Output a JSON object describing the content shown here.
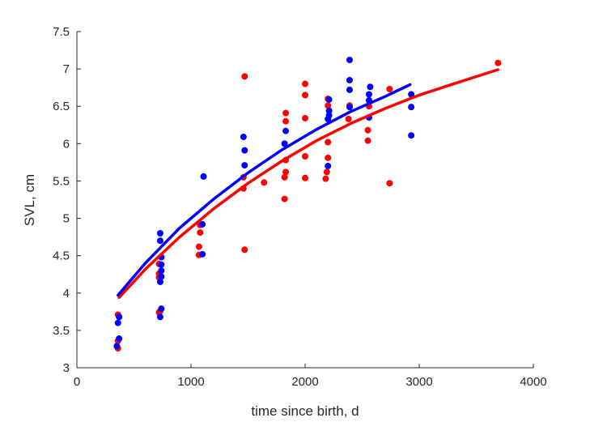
{
  "chart_data": {
    "type": "scatter",
    "xlabel": "time since birth, d",
    "ylabel": "SVL, cm",
    "xlim": [
      0,
      4000
    ],
    "ylim": [
      3,
      7.5
    ],
    "xticks": [
      0,
      1000,
      2000,
      3000,
      4000
    ],
    "xtick_labels": [
      "0",
      "1000",
      "2000",
      "3000",
      "4000"
    ],
    "yticks": [
      3,
      3.5,
      4,
      4.5,
      5,
      5.5,
      6,
      6.5,
      7,
      7.5
    ],
    "ytick_labels": [
      "3",
      "3.5",
      "4",
      "4.5",
      "5",
      "5.5",
      "6",
      "6.5",
      "7",
      "7.5"
    ],
    "grid": false,
    "legend": "none",
    "series": [
      {
        "color": "#ff0000",
        "points": [
          [
            360,
            3.26
          ],
          [
            360,
            3.36
          ],
          [
            360,
            3.71
          ],
          [
            720,
            3.74
          ],
          [
            720,
            4.21
          ],
          [
            720,
            4.26
          ],
          [
            720,
            4.39
          ],
          [
            730,
            3.76
          ],
          [
            1070,
            4.51
          ],
          [
            1070,
            4.62
          ],
          [
            1080,
            4.81
          ],
          [
            1080,
            4.91
          ],
          [
            1460,
            5.4
          ],
          [
            1460,
            5.55
          ],
          [
            1470,
            4.58
          ],
          [
            1470,
            6.9
          ],
          [
            1640,
            5.48
          ],
          [
            1820,
            5.26
          ],
          [
            1820,
            5.55
          ],
          [
            1830,
            5.62
          ],
          [
            1830,
            5.78
          ],
          [
            1830,
            6.3
          ],
          [
            1830,
            6.41
          ],
          [
            2000,
            5.54
          ],
          [
            2000,
            5.83
          ],
          [
            2000,
            6.34
          ],
          [
            2000,
            6.65
          ],
          [
            2000,
            6.8
          ],
          [
            2180,
            5.53
          ],
          [
            2190,
            5.62
          ],
          [
            2200,
            5.81
          ],
          [
            2200,
            6.02
          ],
          [
            2200,
            6.51
          ],
          [
            2200,
            6.6
          ],
          [
            2380,
            6.33
          ],
          [
            2390,
            6.51
          ],
          [
            2550,
            6.04
          ],
          [
            2550,
            6.18
          ],
          [
            2560,
            6.5
          ],
          [
            2740,
            5.47
          ],
          [
            2740,
            6.73
          ],
          [
            3690,
            7.08
          ]
        ],
        "fit": [
          [
            370,
            3.94
          ],
          [
            600,
            4.32
          ],
          [
            900,
            4.75
          ],
          [
            1200,
            5.13
          ],
          [
            1500,
            5.47
          ],
          [
            1800,
            5.77
          ],
          [
            2100,
            6.04
          ],
          [
            2400,
            6.27
          ],
          [
            2700,
            6.47
          ],
          [
            3000,
            6.65
          ],
          [
            3300,
            6.8
          ],
          [
            3690,
            6.99
          ]
        ]
      },
      {
        "color": "#0000ff",
        "points": [
          [
            350,
            3.29
          ],
          [
            360,
            3.6
          ],
          [
            370,
            3.39
          ],
          [
            370,
            3.68
          ],
          [
            730,
            3.68
          ],
          [
            730,
            4.15
          ],
          [
            730,
            4.7
          ],
          [
            730,
            4.8
          ],
          [
            740,
            3.79
          ],
          [
            740,
            4.22
          ],
          [
            740,
            4.3
          ],
          [
            740,
            4.38
          ],
          [
            740,
            4.48
          ],
          [
            1100,
            4.52
          ],
          [
            1100,
            4.92
          ],
          [
            1110,
            5.56
          ],
          [
            1460,
            6.09
          ],
          [
            1470,
            5.71
          ],
          [
            1470,
            5.91
          ],
          [
            1820,
            6.0
          ],
          [
            1830,
            6.17
          ],
          [
            2200,
            5.7
          ],
          [
            2200,
            6.33
          ],
          [
            2210,
            6.38
          ],
          [
            2210,
            6.44
          ],
          [
            2210,
            6.59
          ],
          [
            2390,
            6.49
          ],
          [
            2390,
            6.72
          ],
          [
            2390,
            6.85
          ],
          [
            2390,
            7.12
          ],
          [
            2560,
            6.35
          ],
          [
            2560,
            6.58
          ],
          [
            2560,
            6.66
          ],
          [
            2570,
            6.76
          ],
          [
            2930,
            6.11
          ],
          [
            2930,
            6.49
          ],
          [
            2930,
            6.66
          ]
        ],
        "fit": [
          [
            360,
            3.97
          ],
          [
            600,
            4.4
          ],
          [
            900,
            4.87
          ],
          [
            1200,
            5.26
          ],
          [
            1500,
            5.61
          ],
          [
            1800,
            5.92
          ],
          [
            2100,
            6.19
          ],
          [
            2400,
            6.43
          ],
          [
            2700,
            6.63
          ],
          [
            2920,
            6.79
          ]
        ]
      }
    ]
  }
}
